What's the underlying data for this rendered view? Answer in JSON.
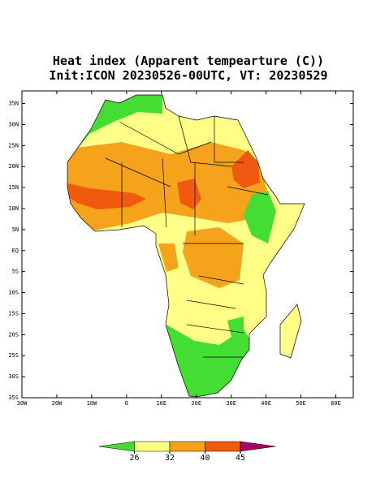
{
  "chart_data": {
    "type": "map",
    "title": "Heat index (Apparent tempearture (C))",
    "subtitle": "Init:ICON 20230526-00UTC, VT: 20230529",
    "xlim": [
      -30,
      65
    ],
    "ylim": [
      -35,
      38
    ],
    "xticks": [
      {
        "value": -30,
        "label": "30W"
      },
      {
        "value": -20,
        "label": "20W"
      },
      {
        "value": -10,
        "label": "10W"
      },
      0,
      {
        "value": 10,
        "label": "10E"
      },
      {
        "value": 20,
        "label": "20E"
      },
      {
        "value": 30,
        "label": "30E"
      },
      {
        "value": 40,
        "label": "40E"
      },
      {
        "value": 50,
        "label": "50E"
      },
      {
        "value": 60,
        "label": "60E"
      }
    ],
    "yticks": [
      {
        "value": 35,
        "label": "35N"
      },
      {
        "value": 30,
        "label": "30N"
      },
      {
        "value": 25,
        "label": "25N"
      },
      {
        "value": 20,
        "label": "20N"
      },
      {
        "value": 15,
        "label": "15N"
      },
      {
        "value": 10,
        "label": "10N"
      },
      {
        "value": 5,
        "label": "5N"
      },
      {
        "value": 0,
        "label": "EQ"
      },
      {
        "value": -5,
        "label": "5S"
      },
      {
        "value": -10,
        "label": "10S"
      },
      {
        "value": -15,
        "label": "15S"
      },
      {
        "value": -20,
        "label": "20S"
      },
      {
        "value": -25,
        "label": "25S"
      },
      {
        "value": -30,
        "label": "30S"
      },
      {
        "value": -35,
        "label": "35S"
      }
    ],
    "colorbar": {
      "levels": [
        26,
        32,
        40,
        45
      ],
      "colors": [
        "#44dd33",
        "#ffff88",
        "#f5a31a",
        "#f05a0f",
        "#aa0066"
      ]
    }
  }
}
